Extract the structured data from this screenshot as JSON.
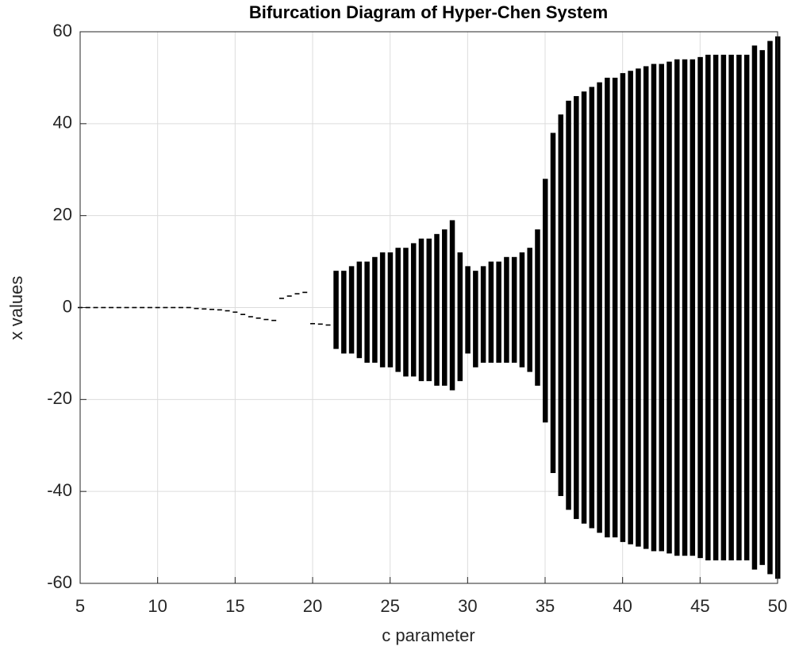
{
  "chart_data": {
    "type": "bifurcation",
    "title": "Bifurcation Diagram of Hyper-Chen System",
    "xlabel": "c parameter",
    "ylabel": "x values",
    "color": "#000000",
    "grid": true,
    "xlim": [
      5,
      50
    ],
    "ylim": [
      -60,
      60
    ],
    "xticks": [
      5,
      10,
      15,
      20,
      25,
      30,
      35,
      40,
      45,
      50
    ],
    "yticks": [
      -60,
      -40,
      -20,
      0,
      20,
      40,
      60
    ],
    "x": [
      5,
      5.5,
      6,
      6.5,
      7,
      7.5,
      8,
      8.5,
      9,
      9.5,
      10,
      10.5,
      11,
      11.5,
      12,
      12.5,
      13,
      13.5,
      14,
      14.5,
      15,
      15.5,
      16,
      16.5,
      17,
      17.5,
      18,
      18.5,
      19,
      19.5,
      20,
      20.5,
      21,
      21.5,
      22,
      22.5,
      23,
      23.5,
      24,
      24.5,
      25,
      25.5,
      26,
      26.5,
      27,
      27.5,
      28,
      28.5,
      29,
      29.5,
      30,
      30.5,
      31,
      31.5,
      32,
      32.5,
      33,
      33.5,
      34,
      34.5,
      35,
      35.5,
      36,
      36.5,
      37,
      37.5,
      38,
      38.5,
      39,
      39.5,
      40,
      40.5,
      41,
      41.5,
      42,
      42.5,
      43,
      43.5,
      44,
      44.5,
      45,
      45.5,
      46,
      46.5,
      47,
      47.5,
      48,
      48.5,
      49,
      49.5,
      50
    ],
    "low": [
      0,
      0,
      0,
      0,
      0,
      0,
      0,
      0,
      0,
      0,
      0,
      0,
      0,
      0,
      0,
      -0.2,
      -0.3,
      -0.4,
      -0.5,
      -0.7,
      -1,
      -1.5,
      -2,
      -2.3,
      -2.6,
      -2.8,
      2,
      2.5,
      3,
      3.3,
      -3.5,
      -3.6,
      -3.8,
      -9,
      -10,
      -10,
      -11,
      -12,
      -12,
      -13,
      -13,
      -14,
      -15,
      -15,
      -16,
      -16,
      -17,
      -17,
      -18,
      -16,
      -10,
      -13,
      -12,
      -12,
      -12,
      -12,
      -12,
      -13,
      -14,
      -17,
      -25,
      -36,
      -41,
      -44,
      -46,
      -47,
      -48,
      -49,
      -50,
      -50,
      -51,
      -51.5,
      -52,
      -52.5,
      -53,
      -53,
      -53.5,
      -54,
      -54,
      -54,
      -54.5,
      -55,
      -55,
      -55,
      -55,
      -55,
      -55,
      -57,
      -56,
      -58,
      -59
    ],
    "high": [
      0,
      0,
      0,
      0,
      0,
      0,
      0,
      0,
      0,
      0,
      0,
      0,
      0,
      0,
      0,
      -0.2,
      -0.3,
      -0.4,
      -0.5,
      -0.7,
      -1,
      -1.5,
      -2,
      -2.3,
      -2.6,
      -2.8,
      2,
      2.5,
      3,
      3.3,
      -3.5,
      -3.6,
      -3.8,
      8,
      8,
      9,
      10,
      10,
      11,
      12,
      12,
      13,
      13,
      14,
      15,
      15,
      16,
      17,
      19,
      12,
      9,
      8,
      9,
      10,
      10,
      11,
      11,
      12,
      13,
      17,
      28,
      38,
      42,
      45,
      46,
      47,
      48,
      49,
      50,
      50,
      51,
      51.5,
      52,
      52.5,
      53,
      53,
      53.5,
      54,
      54,
      54,
      54.5,
      55,
      55,
      55,
      55,
      55,
      55,
      57,
      56,
      58,
      59
    ]
  }
}
